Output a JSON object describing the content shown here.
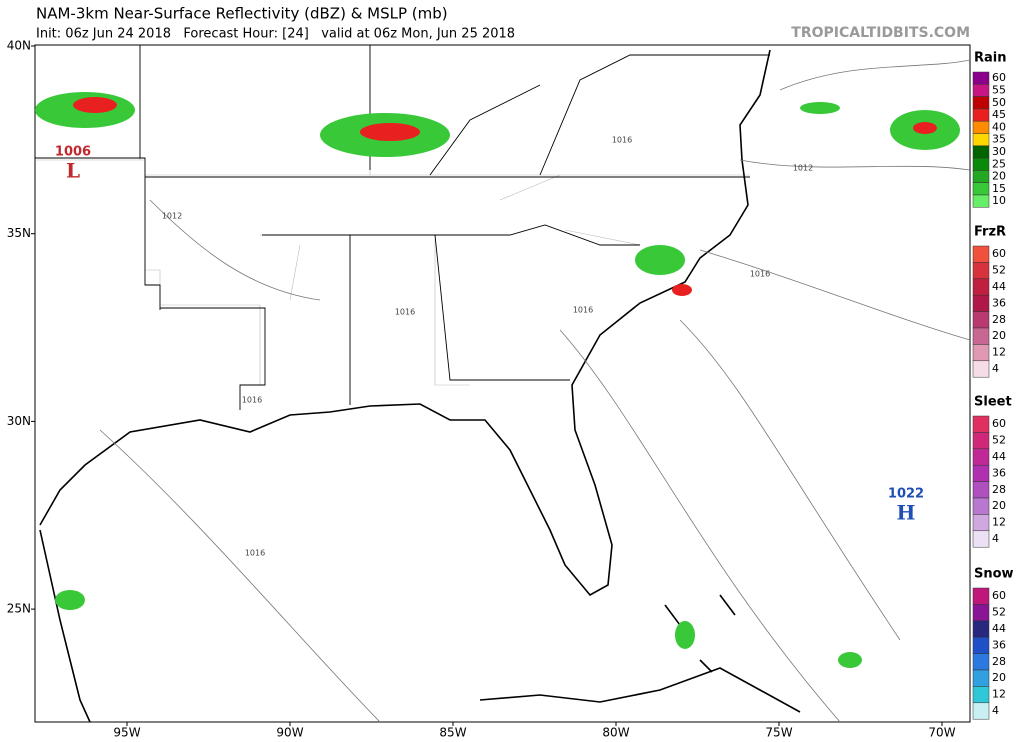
{
  "header": {
    "title": "NAM-3km Near-Surface Reflectivity (dBZ) & MSLP (mb)",
    "subtitle": "Init: 06z Jun 24 2018   Forecast Hour: [24]   valid at 06z Mon, Jun 25 2018",
    "site": "TROPICALTIDBITS.COM"
  },
  "map": {
    "lat_labels": [
      "40N",
      "35N",
      "30N",
      "25N"
    ],
    "lon_labels": [
      "95W",
      "90W",
      "85W",
      "80W",
      "75W",
      "70W"
    ],
    "pressure_centers": [
      {
        "value": "1006",
        "symbol": "L",
        "color": "#c0282d"
      },
      {
        "value": "1022",
        "symbol": "H",
        "color": "#1f4fb4"
      }
    ],
    "isobar_labels": [
      "1016",
      "1012",
      "1012",
      "1016",
      "1016",
      "1016",
      "1016",
      "1016"
    ]
  },
  "legend": [
    {
      "title": "Rain",
      "items": [
        {
          "label": "60",
          "color": "#8b008b"
        },
        {
          "label": "55",
          "color": "#c71585"
        },
        {
          "label": "50",
          "color": "#c00000"
        },
        {
          "label": "45",
          "color": "#e82020"
        },
        {
          "label": "40",
          "color": "#ff8c00"
        },
        {
          "label": "35",
          "color": "#ffd700"
        },
        {
          "label": "30",
          "color": "#006400"
        },
        {
          "label": "25",
          "color": "#0a8a0a"
        },
        {
          "label": "20",
          "color": "#22a822"
        },
        {
          "label": "15",
          "color": "#38c838"
        },
        {
          "label": "10",
          "color": "#66ee66"
        }
      ]
    },
    {
      "title": "FrzR",
      "items": [
        {
          "label": "60",
          "color": "#f0503c"
        },
        {
          "label": "52",
          "color": "#d8323c"
        },
        {
          "label": "44",
          "color": "#c02040"
        },
        {
          "label": "36",
          "color": "#b01848"
        },
        {
          "label": "28",
          "color": "#b83a70"
        },
        {
          "label": "20",
          "color": "#c86892"
        },
        {
          "label": "12",
          "color": "#e098b4"
        },
        {
          "label": "4",
          "color": "#f6dce6"
        }
      ]
    },
    {
      "title": "Sleet",
      "items": [
        {
          "label": "60",
          "color": "#e03060"
        },
        {
          "label": "52",
          "color": "#d02878"
        },
        {
          "label": "44",
          "color": "#c02898"
        },
        {
          "label": "36",
          "color": "#b030b0"
        },
        {
          "label": "28",
          "color": "#b050c0"
        },
        {
          "label": "20",
          "color": "#b878d0"
        },
        {
          "label": "12",
          "color": "#d0a8e0"
        },
        {
          "label": "4",
          "color": "#ece0f4"
        }
      ]
    },
    {
      "title": "Snow",
      "items": [
        {
          "label": "60",
          "color": "#c0187a"
        },
        {
          "label": "52",
          "color": "#8a1496"
        },
        {
          "label": "44",
          "color": "#28287e"
        },
        {
          "label": "36",
          "color": "#2050c8"
        },
        {
          "label": "28",
          "color": "#2a78e0"
        },
        {
          "label": "20",
          "color": "#30a0e0"
        },
        {
          "label": "12",
          "color": "#30c8d8"
        },
        {
          "label": "4",
          "color": "#c8f0f4"
        }
      ]
    }
  ]
}
